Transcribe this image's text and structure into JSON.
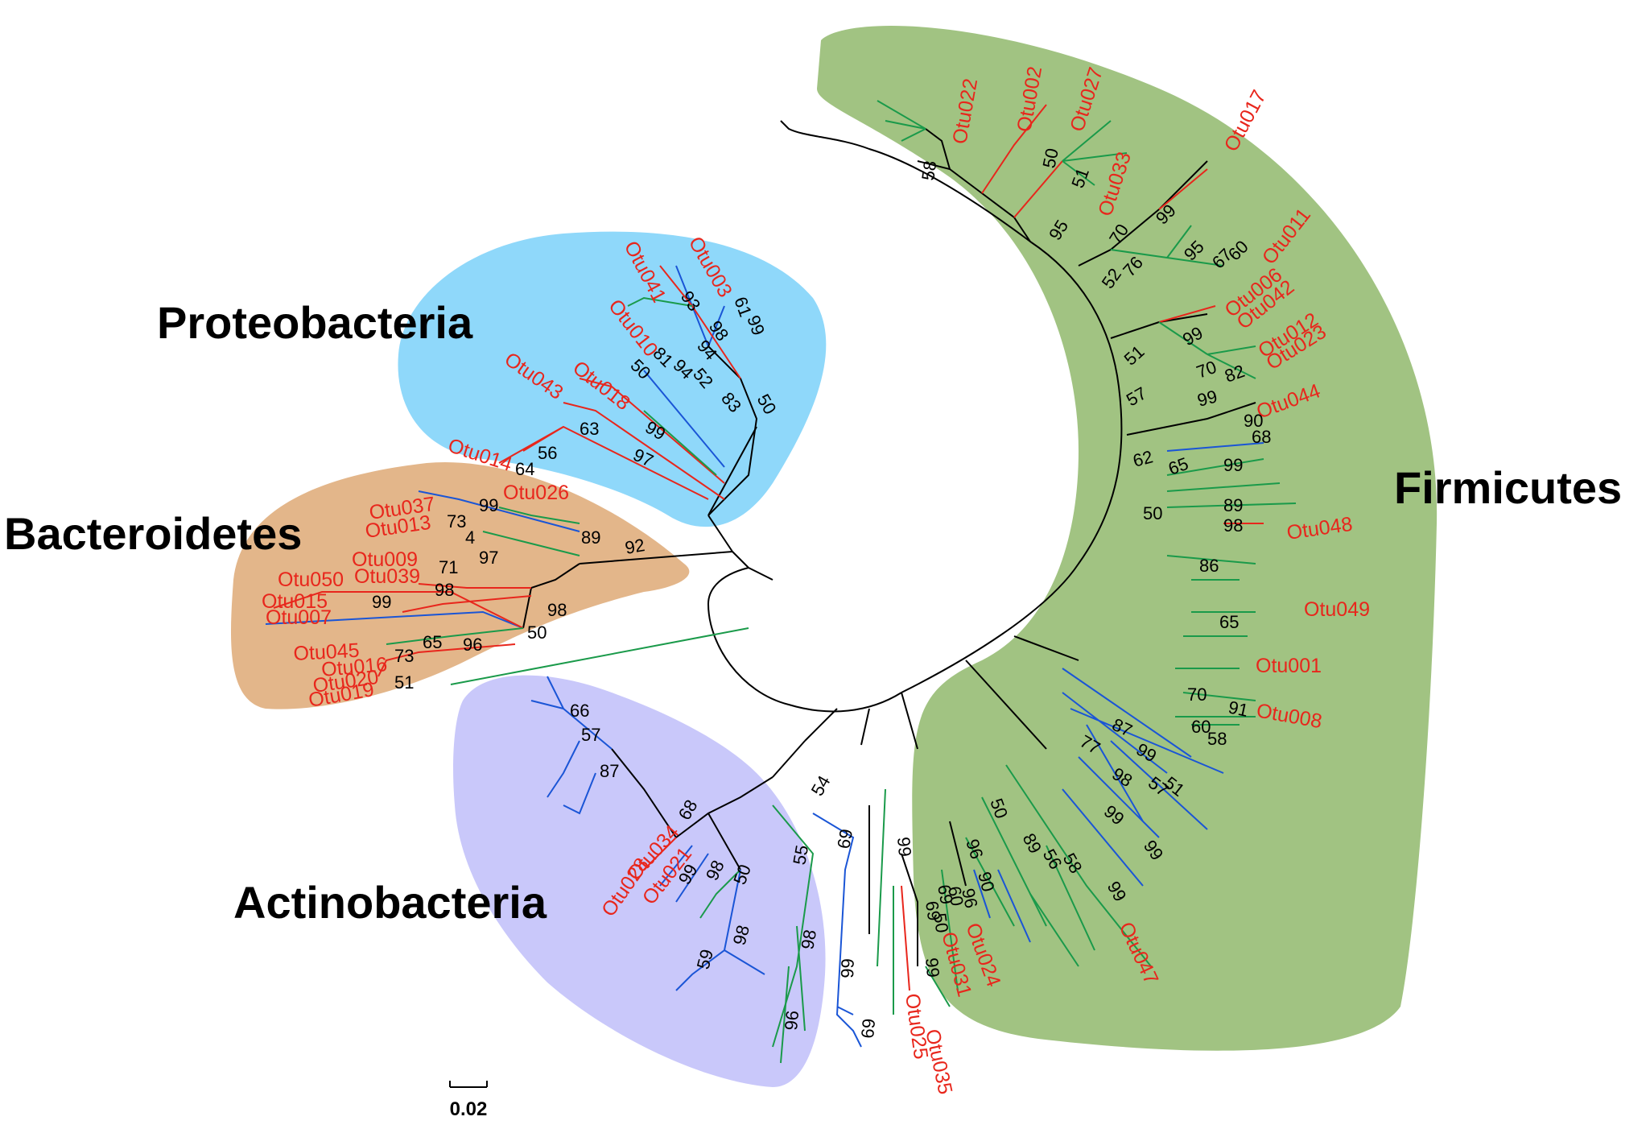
{
  "colors": {
    "firmicutes_bg": "#a1c382",
    "proteobacteria_bg": "#8fd8fa",
    "bacteroidetes_bg": "#e3b68a",
    "actinobacteria_bg": "#c9c8fa",
    "otu_label": "#e8261c",
    "branch_black": "#000000",
    "branch_red": "#e8261c",
    "branch_green": "#1a9a4a",
    "branch_blue": "#1a55d6"
  },
  "clades": {
    "firmicutes": "Firmicutes",
    "proteobacteria": "Proteobacteria",
    "bacteroidetes": "Bacteroidetes",
    "actinobacteria": "Actinobacteria"
  },
  "scale_bar": {
    "label": "0.02"
  },
  "otu_labels": {
    "otu022": "Otu022",
    "otu002": "Otu002",
    "otu027": "Otu027",
    "otu017": "Otu017",
    "otu033": "Otu033",
    "otu011": "Otu011",
    "otu006": "Otu006",
    "otu042": "Otu042",
    "otu012": "Otu012",
    "otu023": "Otu023",
    "otu044": "Otu044",
    "otu048": "Otu048",
    "otu049": "Otu049",
    "otu001": "Otu001",
    "otu008": "Otu008",
    "otu047": "Otu047",
    "otu024": "Otu024",
    "otu031": "Otu031",
    "otu035": "Otu035",
    "otu025": "Otu025",
    "otu041": "Otu041",
    "otu003": "Otu003",
    "otu010": "Otu010",
    "otu018": "Otu018",
    "otu043": "Otu043",
    "otu014": "Otu014",
    "otu026": "Otu026",
    "otu037": "Otu037",
    "otu013": "Otu013",
    "otu009": "Otu009",
    "otu050": "Otu050",
    "otu039": "Otu039",
    "otu015": "Otu015",
    "otu007": "Otu007",
    "otu045": "Otu045",
    "otu016": "Otu016",
    "otu020": "Otu020",
    "otu019": "Otu019",
    "otu034": "Otu034",
    "otu021": "Otu021",
    "otu028": "Otu028"
  },
  "bootstrap": {
    "firmicutes": [
      "58",
      "50",
      "51",
      "95",
      "70",
      "99",
      "76",
      "95",
      "67",
      "60",
      "52",
      "51",
      "99",
      "70",
      "82",
      "57",
      "99",
      "62",
      "90",
      "68",
      "99",
      "65",
      "50",
      "89",
      "98",
      "86",
      "65",
      "70",
      "60",
      "91",
      "58",
      "87",
      "77",
      "99",
      "98",
      "57",
      "51",
      "99",
      "50",
      "96",
      "89",
      "56",
      "58",
      "99",
      "90",
      "69",
      "99",
      "50",
      "99",
      "96",
      "60",
      "69",
      "99"
    ],
    "proteobacteria": [
      "93",
      "98",
      "61",
      "99",
      "81",
      "94",
      "94",
      "50",
      "52",
      "83",
      "50",
      "63",
      "99",
      "56",
      "97",
      "64"
    ],
    "bacteroidetes": [
      "99",
      "73",
      "4",
      "89",
      "92",
      "71",
      "97",
      "98",
      "99",
      "98",
      "50",
      "65",
      "96",
      "73",
      "51"
    ],
    "actinobacteria": [
      "66",
      "57",
      "87",
      "68",
      "99",
      "98",
      "50",
      "55",
      "69",
      "54",
      "98",
      "59",
      "98",
      "96",
      "99",
      "69"
    ]
  }
}
